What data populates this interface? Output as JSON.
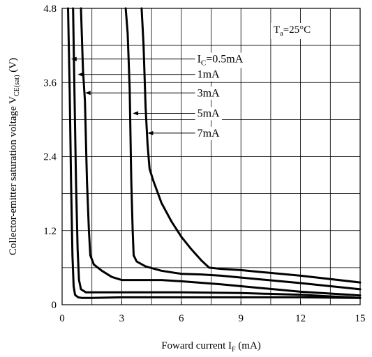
{
  "chart_data": {
    "type": "line",
    "xlabel_main": "Foward current I",
    "xlabel_sub": "F",
    "xlabel_tail": " (mA)",
    "ylabel_main": "Collector-emitter saturation voltage V",
    "ylabel_sub": "CE(sat)",
    "ylabel_tail": " (V)",
    "condition_main": "T",
    "condition_sub": "a",
    "condition_tail": "=25°C",
    "xlim": [
      0,
      15
    ],
    "ylim": [
      0,
      4.8
    ],
    "x_ticks": [
      "0",
      "3",
      "6",
      "9",
      "12",
      "15"
    ],
    "y_ticks": [
      "0",
      "1.2",
      "2.4",
      "3.6",
      "4.8"
    ],
    "grid": true,
    "series": [
      {
        "label_main": "I",
        "label_sub": "C",
        "label_tail": "=0.5mA",
        "label_pos": [
          6.8,
          3.98
        ],
        "arrow_to": [
          0.45,
          3.98
        ],
        "points": [
          [
            0.3,
            4.8
          ],
          [
            0.38,
            3.5
          ],
          [
            0.45,
            2.0
          ],
          [
            0.52,
            0.8
          ],
          [
            0.58,
            0.3
          ],
          [
            0.65,
            0.16
          ],
          [
            0.8,
            0.12
          ],
          [
            1.0,
            0.11
          ],
          [
            1.5,
            0.11
          ],
          [
            3,
            0.12
          ],
          [
            6,
            0.12
          ],
          [
            9,
            0.12
          ],
          [
            12,
            0.12
          ],
          [
            15,
            0.11
          ]
        ]
      },
      {
        "label_main": "1mA",
        "label_sub": "",
        "label_tail": "",
        "label_pos": [
          6.8,
          3.73
        ],
        "arrow_to": [
          0.78,
          3.73
        ],
        "points": [
          [
            0.55,
            4.8
          ],
          [
            0.62,
            3.5
          ],
          [
            0.7,
            2.0
          ],
          [
            0.78,
            0.9
          ],
          [
            0.85,
            0.4
          ],
          [
            0.95,
            0.25
          ],
          [
            1.2,
            0.2
          ],
          [
            2,
            0.2
          ],
          [
            3,
            0.2
          ],
          [
            6,
            0.2
          ],
          [
            9,
            0.19
          ],
          [
            12,
            0.16
          ],
          [
            15,
            0.11
          ]
        ]
      },
      {
        "label_main": "3mA",
        "label_sub": "",
        "label_tail": "",
        "label_pos": [
          6.8,
          3.43
        ],
        "arrow_to": [
          1.15,
          3.43
        ],
        "points": [
          [
            0.95,
            4.8
          ],
          [
            1.05,
            3.8
          ],
          [
            1.15,
            3.3
          ],
          [
            1.25,
            2.0
          ],
          [
            1.35,
            1.2
          ],
          [
            1.42,
            0.8
          ],
          [
            1.6,
            0.65
          ],
          [
            2,
            0.55
          ],
          [
            2.5,
            0.45
          ],
          [
            3,
            0.4
          ],
          [
            4,
            0.4
          ],
          [
            5,
            0.4
          ],
          [
            6,
            0.38
          ],
          [
            8,
            0.33
          ],
          [
            10,
            0.27
          ],
          [
            12,
            0.21
          ],
          [
            15,
            0.15
          ]
        ]
      },
      {
        "label_main": "5mA",
        "label_sub": "",
        "label_tail": "",
        "label_pos": [
          6.8,
          3.1
        ],
        "arrow_to": [
          3.55,
          3.1
        ],
        "points": [
          [
            3.2,
            4.8
          ],
          [
            3.3,
            4.4
          ],
          [
            3.4,
            3.5
          ],
          [
            3.48,
            2.0
          ],
          [
            3.55,
            1.2
          ],
          [
            3.6,
            0.8
          ],
          [
            3.75,
            0.7
          ],
          [
            4.2,
            0.62
          ],
          [
            5,
            0.55
          ],
          [
            6,
            0.5
          ],
          [
            7,
            0.49
          ],
          [
            8,
            0.47
          ],
          [
            10,
            0.41
          ],
          [
            12,
            0.35
          ],
          [
            15,
            0.25
          ]
        ]
      },
      {
        "label_main": "7mA",
        "label_sub": "",
        "label_tail": "",
        "label_pos": [
          6.8,
          2.78
        ],
        "arrow_to": [
          4.3,
          2.78
        ],
        "points": [
          [
            4.0,
            4.8
          ],
          [
            4.1,
            4.2
          ],
          [
            4.2,
            3.2
          ],
          [
            4.3,
            2.6
          ],
          [
            4.4,
            2.2
          ],
          [
            4.6,
            2.0
          ],
          [
            5,
            1.65
          ],
          [
            5.5,
            1.35
          ],
          [
            6,
            1.1
          ],
          [
            6.5,
            0.9
          ],
          [
            7,
            0.72
          ],
          [
            7.4,
            0.6
          ],
          [
            8,
            0.58
          ],
          [
            9,
            0.56
          ],
          [
            10,
            0.53
          ],
          [
            12,
            0.47
          ],
          [
            15,
            0.36
          ]
        ]
      }
    ]
  }
}
